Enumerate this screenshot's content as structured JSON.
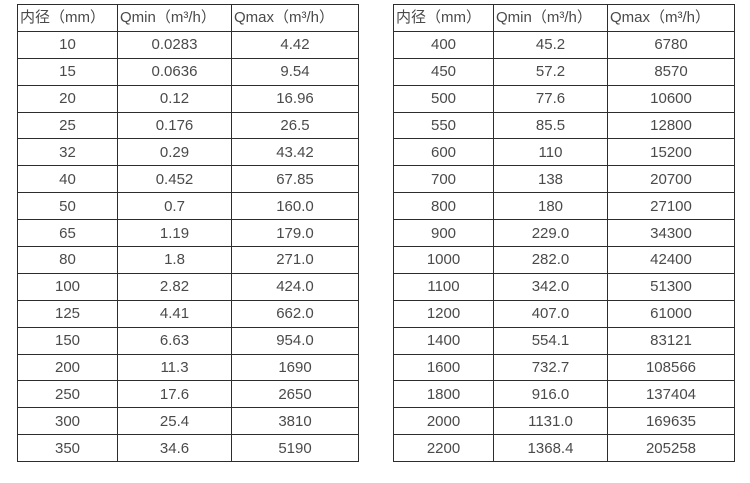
{
  "page": {
    "background_color": "#ffffff",
    "border_color": "#2d2d2d",
    "text_color": "#4a4a4a"
  },
  "tables": [
    {
      "name": "flow-table-small-diameters",
      "headers": [
        "内径（mm）",
        "Qmin（m³/h）",
        "Qmax（m³/h）"
      ],
      "rows": [
        [
          "10",
          "0.0283",
          "4.42"
        ],
        [
          "15",
          "0.0636",
          "9.54"
        ],
        [
          "20",
          "0.12",
          "16.96"
        ],
        [
          "25",
          "0.176",
          "26.5"
        ],
        [
          "32",
          "0.29",
          "43.42"
        ],
        [
          "40",
          "0.452",
          "67.85"
        ],
        [
          "50",
          "0.7",
          "160.0"
        ],
        [
          "65",
          "1.19",
          "179.0"
        ],
        [
          "80",
          "1.8",
          "271.0"
        ],
        [
          "100",
          "2.82",
          "424.0"
        ],
        [
          "125",
          "4.41",
          "662.0"
        ],
        [
          "150",
          "6.63",
          "954.0"
        ],
        [
          "200",
          "11.3",
          "1690"
        ],
        [
          "250",
          "17.6",
          "2650"
        ],
        [
          "300",
          "25.4",
          "3810"
        ],
        [
          "350",
          "34.6",
          "5190"
        ]
      ]
    },
    {
      "name": "flow-table-large-diameters",
      "headers": [
        "内径（mm）",
        "Qmin（m³/h）",
        "Qmax（m³/h）"
      ],
      "rows": [
        [
          "400",
          "45.2",
          "6780"
        ],
        [
          "450",
          "57.2",
          "8570"
        ],
        [
          "500",
          "77.6",
          "10600"
        ],
        [
          "550",
          "85.5",
          "12800"
        ],
        [
          "600",
          "110",
          "15200"
        ],
        [
          "700",
          "138",
          "20700"
        ],
        [
          "800",
          "180",
          "27100"
        ],
        [
          "900",
          "229.0",
          "34300"
        ],
        [
          "1000",
          "282.0",
          "42400"
        ],
        [
          "1100",
          "342.0",
          "51300"
        ],
        [
          "1200",
          "407.0",
          "61000"
        ],
        [
          "1400",
          "554.1",
          "83121"
        ],
        [
          "1600",
          "732.7",
          "108566"
        ],
        [
          "1800",
          "916.0",
          "137404"
        ],
        [
          "2000",
          "1131.0",
          "169635"
        ],
        [
          "2200",
          "1368.4",
          "205258"
        ]
      ]
    }
  ]
}
